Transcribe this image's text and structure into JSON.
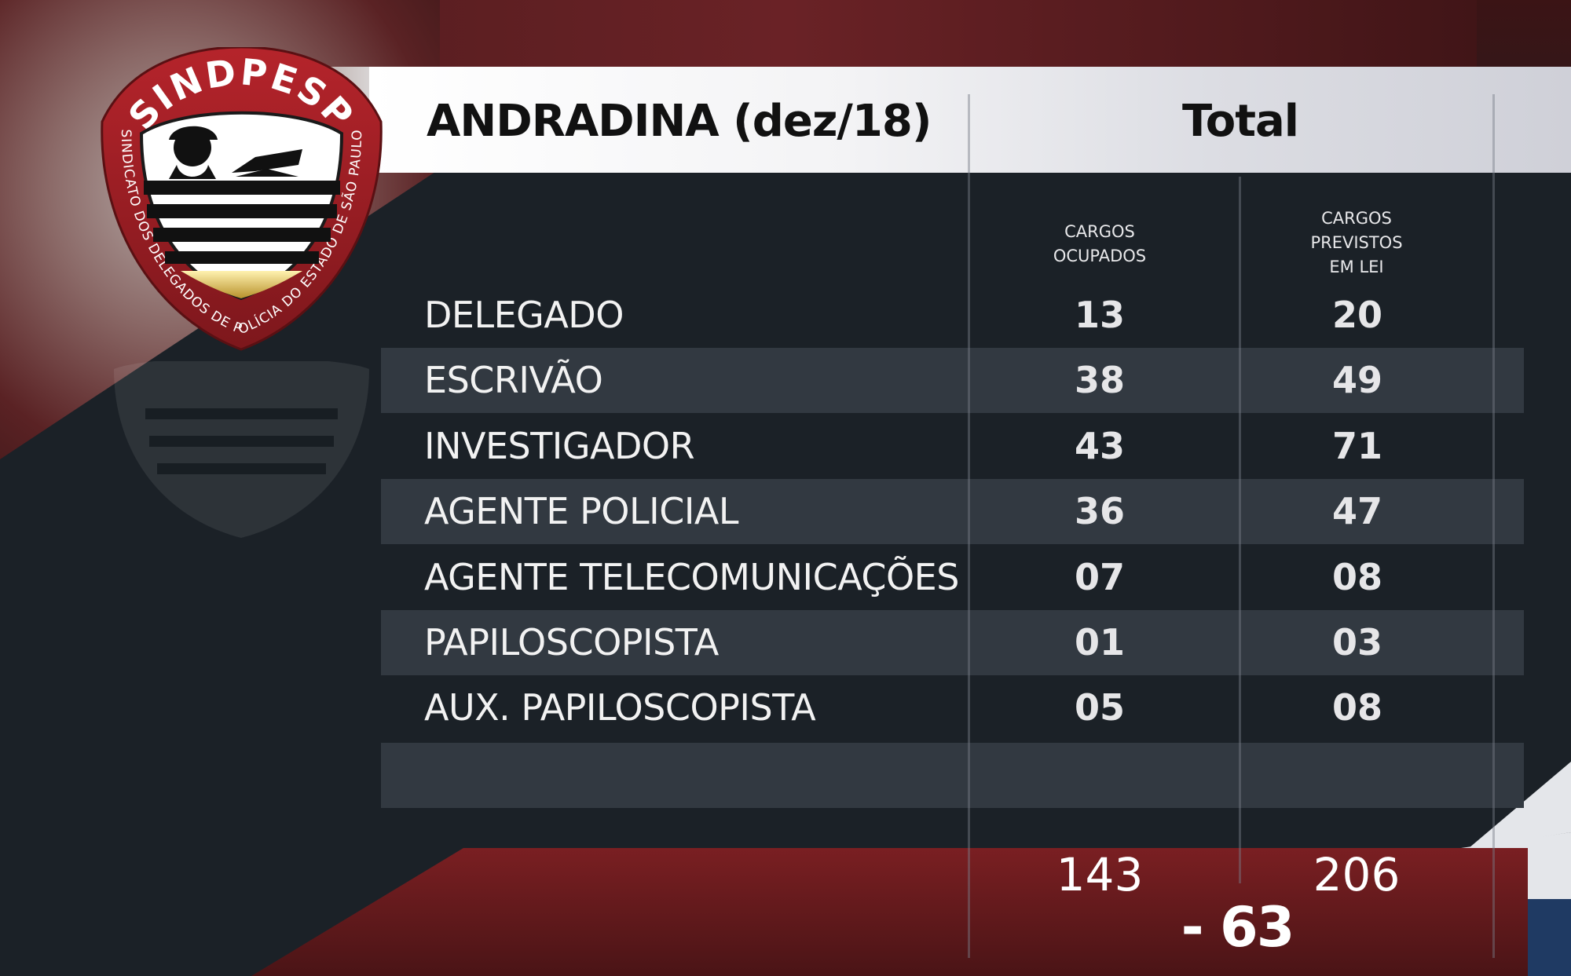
{
  "header": {
    "title": "ANDRADINA (dez/18)",
    "total_label": "Total"
  },
  "columns": {
    "occupied_label_lines": [
      "CARGOS",
      "OCUPADOS"
    ],
    "planned_label_lines": [
      "CARGOS",
      "PREVISTOS",
      "EM LEI"
    ]
  },
  "rows": [
    {
      "role": "DELEGADO",
      "occupied": "13",
      "planned": "20"
    },
    {
      "role": "ESCRIVÃO",
      "occupied": "38",
      "planned": "49"
    },
    {
      "role": "INVESTIGADOR",
      "occupied": "43",
      "planned": "71"
    },
    {
      "role": "AGENTE POLICIAL",
      "occupied": "36",
      "planned": "47"
    },
    {
      "role": "AGENTE TELECOMUNICAÇÕES",
      "occupied": "07",
      "planned": "08"
    },
    {
      "role": "PAPILOSCOPISTA",
      "occupied": "01",
      "planned": "03"
    },
    {
      "role": "AUX. PAPILOSCOPISTA",
      "occupied": "05",
      "planned": "08"
    }
  ],
  "totals": {
    "occupied": "143",
    "planned": "206",
    "difference": "- 63"
  },
  "logo": {
    "brand_text": "SINDPESP",
    "ring_text": "SINDICATO DOS DELEGADOS DE POLÍCIA DO ESTADO DE SÃO PAULO"
  },
  "colors": {
    "background_dark": "#1b2127",
    "row_shade": "#323941",
    "brand_red": "#8e1c22",
    "header_white": "#f3f3f5"
  }
}
